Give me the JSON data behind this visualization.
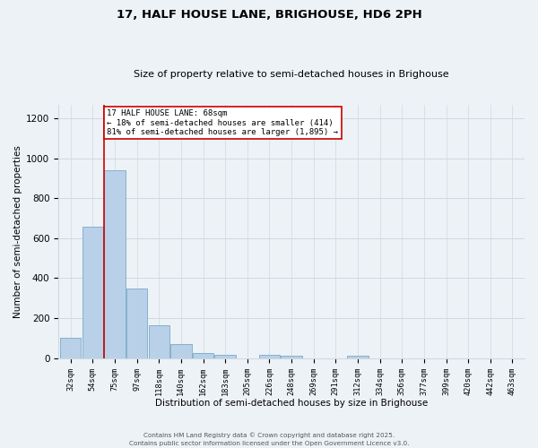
{
  "title1": "17, HALF HOUSE LANE, BRIGHOUSE, HD6 2PH",
  "title2": "Size of property relative to semi-detached houses in Brighouse",
  "xlabel": "Distribution of semi-detached houses by size in Brighouse",
  "ylabel": "Number of semi-detached properties",
  "bin_labels": [
    "32sqm",
    "54sqm",
    "75sqm",
    "97sqm",
    "118sqm",
    "140sqm",
    "162sqm",
    "183sqm",
    "205sqm",
    "226sqm",
    "248sqm",
    "269sqm",
    "291sqm",
    "312sqm",
    "334sqm",
    "356sqm",
    "377sqm",
    "399sqm",
    "420sqm",
    "442sqm",
    "463sqm"
  ],
  "bar_values": [
    100,
    660,
    940,
    350,
    165,
    68,
    23,
    18,
    0,
    14,
    13,
    0,
    0,
    11,
    0,
    0,
    0,
    0,
    0,
    0,
    0
  ],
  "bar_color": "#b8d0e8",
  "bar_edge_color": "#7aaac8",
  "vline_color": "#cc0000",
  "annotation_title": "17 HALF HOUSE LANE: 68sqm",
  "annotation_line1": "← 18% of semi-detached houses are smaller (414)",
  "annotation_line2": "81% of semi-detached houses are larger (1,895) →",
  "annotation_box_color": "#ffffff",
  "annotation_box_edge": "#cc0000",
  "ylim": [
    0,
    1270
  ],
  "yticks": [
    0,
    200,
    400,
    600,
    800,
    1000,
    1200
  ],
  "grid_color": "#d0d8e0",
  "bg_color": "#edf2f7",
  "fig_bg_color": "#edf2f7",
  "footnote1": "Contains HM Land Registry data © Crown copyright and database right 2025.",
  "footnote2": "Contains public sector information licensed under the Open Government Licence v3.0.",
  "vline_pos": 1.5
}
